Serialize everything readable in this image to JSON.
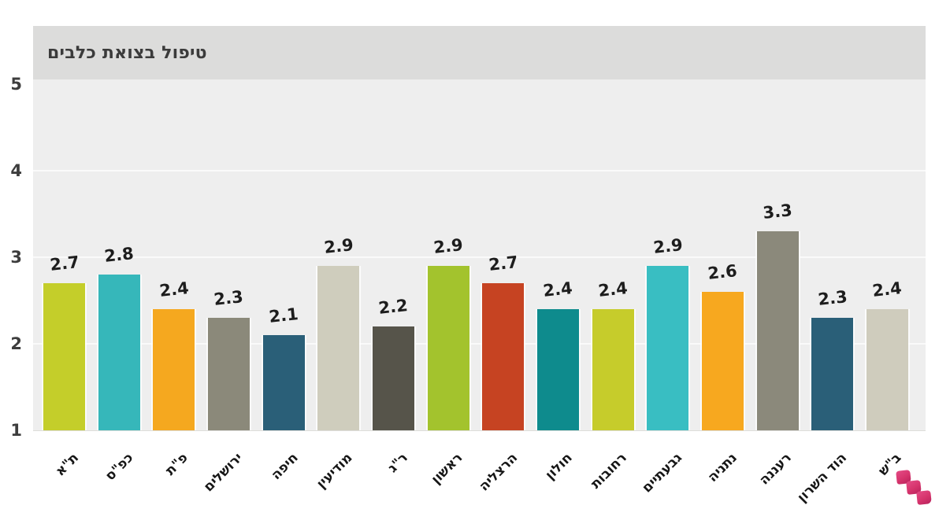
{
  "title": "טיפול בצואת כלבים",
  "chart_data": {
    "type": "bar",
    "title": "טיפול בצואת כלבים",
    "categories": [
      "ת\"א",
      "כפ\"ס",
      "פ\"ת",
      "ירושלים",
      "חיפה",
      "מודיעין",
      "ר\"ג",
      "ראשון",
      "הרצליה",
      "חולון",
      "רחובות",
      "גבעתיים",
      "נתניה",
      "רעננה",
      "הוד השרון",
      "ב\"ש"
    ],
    "values": [
      2.7,
      2.8,
      2.4,
      2.3,
      2.1,
      2.9,
      2.2,
      2.9,
      2.7,
      2.4,
      2.4,
      2.9,
      2.6,
      3.3,
      2.3,
      2.4
    ],
    "value_labels": [
      "2.7",
      "2.8",
      "2.4",
      "2.3",
      "2.1",
      "2.9",
      "2.2",
      "2.9",
      "2.7",
      "2.4",
      "2.4",
      "2.9",
      "2.6",
      "3.3",
      "2.3",
      "2.4"
    ],
    "bar_colors": [
      "#c4ce2a",
      "#36b7ba",
      "#f5a81f",
      "#8b897a",
      "#2a5f78",
      "#cfcdbd",
      "#56544a",
      "#a3c32d",
      "#c64322",
      "#0e8b8d",
      "#c6cc2b",
      "#39bec2",
      "#f7a81f",
      "#8b897b",
      "#2a5f78",
      "#cfccbd"
    ],
    "ylim": [
      1,
      5
    ],
    "y_ticks": [
      "5",
      "4",
      "3",
      "2",
      "1"
    ],
    "grid": "horizontal white gridlines at 2, 3, 4",
    "legend": "none",
    "xlabel": "",
    "ylabel": ""
  },
  "colors": {
    "title_band_bg": "#dcdcdb",
    "plot_bg": "#eeeeee",
    "gridline": "#fafafa",
    "text": "#1d1d1d",
    "logo_pink": "#d6336c"
  },
  "logo": {
    "name": "pink-steps-logo"
  }
}
